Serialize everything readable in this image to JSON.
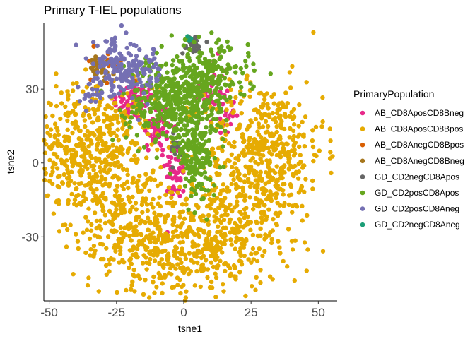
{
  "chart_data": {
    "type": "scatter",
    "title": "Primary T-IEL populations",
    "xlabel": "tsne1",
    "ylabel": "tsne2",
    "xlim": [
      -52,
      57
    ],
    "ylim": [
      -56,
      57
    ],
    "xticks": [
      -50,
      -25,
      0,
      25,
      50
    ],
    "xtick_labels": [
      "-50",
      "-25",
      "0",
      "25",
      "50"
    ],
    "yticks": [
      -30,
      0,
      30
    ],
    "ytick_labels": [
      "-30",
      "0",
      "30"
    ],
    "grid": false,
    "legend_title": "PrimaryPopulation",
    "legend_position": "right",
    "series": [
      {
        "name": "AB_CD8AposCD8Bneg",
        "color": "#e7298a",
        "clusters": [
          {
            "cx": -18,
            "cy": 25,
            "sx": 4,
            "sy": 4,
            "n": 80
          },
          {
            "cx": -10,
            "cy": 14,
            "sx": 3,
            "sy": 5,
            "n": 60
          },
          {
            "cx": -3,
            "cy": -3,
            "sx": 2,
            "sy": 6,
            "n": 50
          },
          {
            "cx": 10,
            "cy": 30,
            "sx": 3,
            "sy": 6,
            "n": 40
          },
          {
            "cx": 15,
            "cy": 20,
            "sx": 2,
            "sy": 4,
            "n": 25
          }
        ]
      },
      {
        "name": "AB_CD8AposCD8Bpos",
        "color": "#e6ab02",
        "clusters": [
          {
            "cx": -35,
            "cy": 5,
            "sx": 12,
            "sy": 13,
            "n": 520
          },
          {
            "cx": 30,
            "cy": 5,
            "sx": 11,
            "sy": 14,
            "n": 480
          },
          {
            "cx": 0,
            "cy": -35,
            "sx": 18,
            "sy": 10,
            "n": 480
          },
          {
            "cx": -20,
            "cy": -20,
            "sx": 10,
            "sy": 10,
            "n": 160
          },
          {
            "cx": 18,
            "cy": -20,
            "sx": 9,
            "sy": 9,
            "n": 140
          }
        ]
      },
      {
        "name": "AB_CD8AnegCD8Bpos",
        "color": "#d95f02",
        "clusters": [
          {
            "cx": -27,
            "cy": 40,
            "sx": 5,
            "sy": 4,
            "n": 15
          }
        ]
      },
      {
        "name": "AB_CD8AnegCD8Bneg",
        "color": "#a6761d",
        "clusters": [
          {
            "cx": -32,
            "cy": 38,
            "sx": 3,
            "sy": 3,
            "n": 30
          }
        ]
      },
      {
        "name": "GD_CD2negCD8Apos",
        "color": "#666666",
        "clusters": [
          {
            "cx": 3,
            "cy": 48,
            "sx": 2,
            "sy": 2,
            "n": 25
          },
          {
            "cx": -3,
            "cy": 5,
            "sx": 2,
            "sy": 3,
            "n": 15
          }
        ]
      },
      {
        "name": "GD_CD2posCD8Apos",
        "color": "#66a61e",
        "clusters": [
          {
            "cx": -5,
            "cy": 25,
            "sx": 8,
            "sy": 9,
            "n": 340
          },
          {
            "cx": 8,
            "cy": 35,
            "sx": 8,
            "sy": 7,
            "n": 220
          },
          {
            "cx": 5,
            "cy": 5,
            "sx": 4,
            "sy": 9,
            "n": 200
          }
        ]
      },
      {
        "name": "GD_CD2posCD8Aneg",
        "color": "#7570b3",
        "clusters": [
          {
            "cx": -25,
            "cy": 38,
            "sx": 5,
            "sy": 6,
            "n": 120
          },
          {
            "cx": -34,
            "cy": 28,
            "sx": 2,
            "sy": 3,
            "n": 25
          },
          {
            "cx": -15,
            "cy": 37,
            "sx": 4,
            "sy": 5,
            "n": 60
          }
        ]
      },
      {
        "name": "GD_CD2negCD8Aneg",
        "color": "#1b9e77",
        "clusters": [
          {
            "cx": 2,
            "cy": 50,
            "sx": 1,
            "sy": 1,
            "n": 3
          }
        ]
      }
    ]
  }
}
